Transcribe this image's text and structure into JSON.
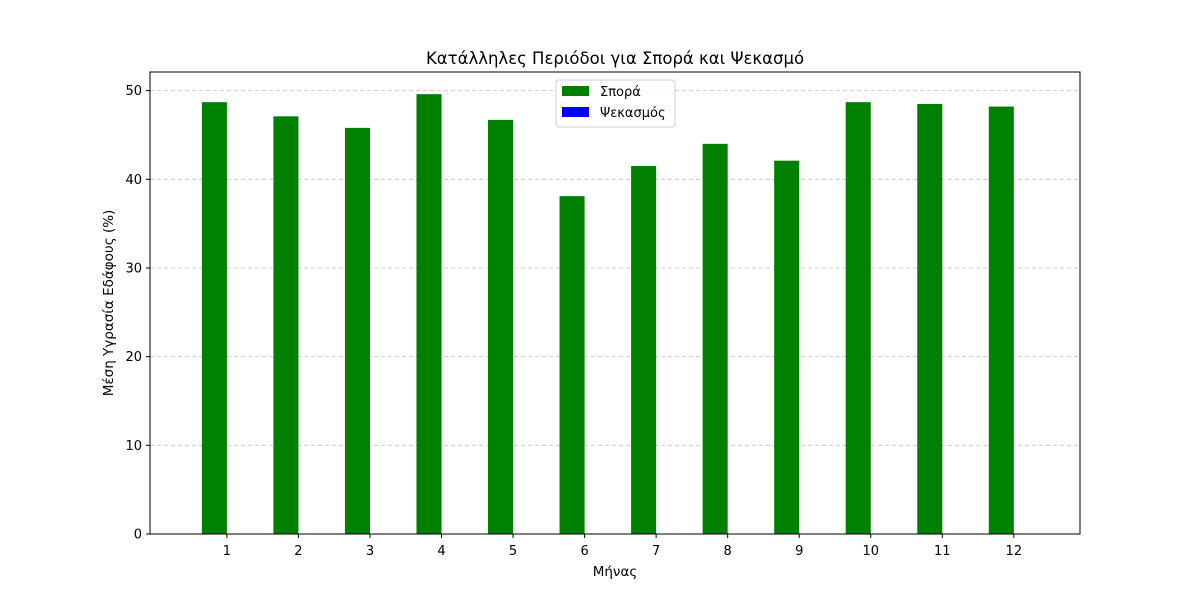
{
  "chart_data": {
    "type": "bar",
    "title": "Κατάλληλες Περιόδοι για Σπορά και Ψεκασμό",
    "xlabel": "Μήνας",
    "ylabel": "Μέση Υγρασία Εδάφους (%)",
    "categories": [
      "1",
      "2",
      "3",
      "4",
      "5",
      "6",
      "7",
      "8",
      "9",
      "10",
      "11",
      "12"
    ],
    "series": [
      {
        "name": "Σπορά",
        "color": "#008000",
        "values": [
          48.7,
          47.1,
          45.8,
          49.6,
          46.7,
          38.1,
          41.5,
          44.0,
          42.1,
          48.7,
          48.5,
          48.2
        ]
      },
      {
        "name": "Ψεκασμός",
        "color": "#0000ff",
        "values": [
          0,
          0,
          0,
          0,
          0,
          0,
          0,
          0,
          0,
          0,
          0,
          0
        ]
      }
    ],
    "yticks": [
      0,
      10,
      20,
      30,
      40,
      50
    ],
    "ylim": [
      0,
      52.1
    ],
    "grid": true,
    "legend_position": "top-center"
  }
}
